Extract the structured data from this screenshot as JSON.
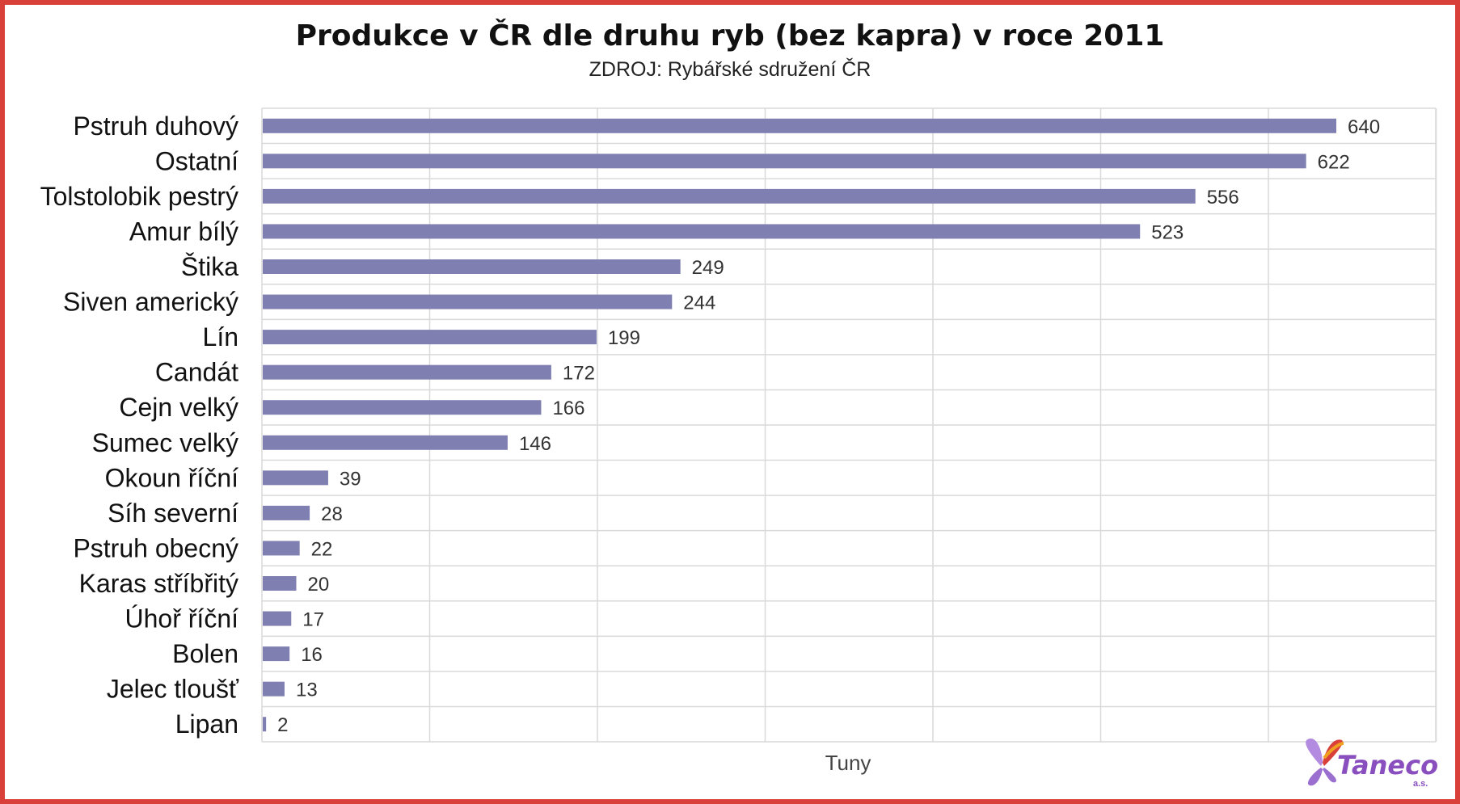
{
  "chart_data": {
    "type": "bar",
    "orientation": "horizontal",
    "title": "Produkce v ČR dle druhu ryb (bez kapra) v roce 2011",
    "subtitle": "ZDROJ: Rybářské sdružení ČR",
    "xlabel": "Tuny",
    "ylabel": "",
    "xlim": [
      0,
      700
    ],
    "grid": true,
    "categories": [
      "Pstruh duhový",
      "Ostatní",
      "Tolstolobik pestrý",
      "Amur bílý",
      "Štika",
      "Siven americký",
      "Lín",
      "Candát",
      "Cejn velký",
      "Sumec velký",
      "Okoun říční",
      "Síh severní",
      "Pstruh obecný",
      "Karas stříbřitý",
      "Úhoř říční",
      "Bolen",
      "Jelec tloušť",
      "Lipan"
    ],
    "values": [
      640,
      622,
      556,
      523,
      249,
      244,
      199,
      172,
      166,
      146,
      39,
      28,
      22,
      20,
      17,
      16,
      13,
      2
    ],
    "bar_color": "#7f7fb2"
  },
  "logo": {
    "text": "Taneco",
    "sub": "a.s."
  },
  "frame_color": "#d9403a"
}
